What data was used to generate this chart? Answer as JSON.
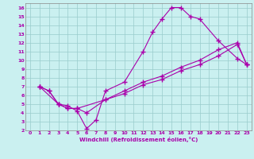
{
  "xlabel": "Windchill (Refroidissement éolien,°C)",
  "bg_color": "#caf0f0",
  "line_color": "#aa00aa",
  "xlim": [
    -0.5,
    23.5
  ],
  "ylim": [
    2,
    16.5
  ],
  "xticks": [
    0,
    1,
    2,
    3,
    4,
    5,
    6,
    7,
    8,
    9,
    10,
    11,
    12,
    13,
    14,
    15,
    16,
    17,
    18,
    19,
    20,
    21,
    22,
    23
  ],
  "yticks": [
    2,
    3,
    4,
    5,
    6,
    7,
    8,
    9,
    10,
    11,
    12,
    13,
    14,
    15,
    16
  ],
  "grid_color": "#99cccc",
  "line1_x": [
    1,
    2,
    3,
    4,
    5,
    6,
    7,
    8,
    10,
    12,
    13,
    14,
    15,
    16,
    17,
    18,
    20,
    22,
    23
  ],
  "line1_y": [
    7,
    6.5,
    5,
    4.8,
    4.2,
    2.2,
    3.2,
    6.5,
    7.5,
    11.0,
    13.2,
    14.7,
    16.0,
    16.0,
    15.0,
    14.7,
    12.2,
    10.2,
    9.5
  ],
  "line2_x": [
    1,
    2,
    3,
    4,
    5,
    6,
    8,
    10,
    12,
    14,
    16,
    18,
    20,
    22,
    23
  ],
  "line2_y": [
    7,
    6.5,
    5,
    4.5,
    4.5,
    4.0,
    5.5,
    6.5,
    7.5,
    8.2,
    9.2,
    10.0,
    11.2,
    12.0,
    9.5
  ],
  "line3_x": [
    1,
    3,
    4,
    5,
    8,
    10,
    12,
    14,
    16,
    18,
    20,
    22,
    23
  ],
  "line3_y": [
    7,
    5.0,
    4.5,
    4.5,
    5.5,
    6.2,
    7.2,
    7.8,
    8.8,
    9.5,
    10.5,
    11.8,
    9.5
  ]
}
